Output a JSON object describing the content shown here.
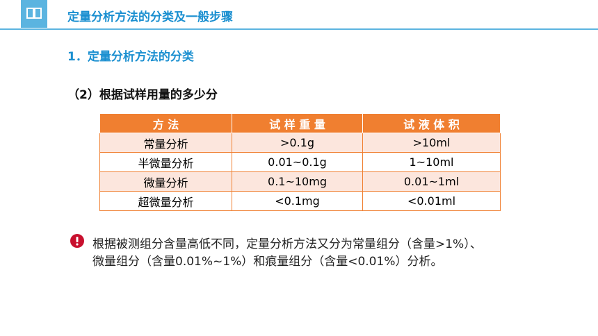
{
  "header": {
    "title": "定量分析方法的分类及一般步骤"
  },
  "section": {
    "title": "1．定量分析方法的分类"
  },
  "subsection": {
    "title": "（2）根据试样用量的多少分"
  },
  "table": {
    "header": [
      "方 法",
      "试 样 重 量",
      "试 液 体 积"
    ],
    "rows": [
      [
        "常量分析",
        ">0.1g",
        ">10ml"
      ],
      [
        "半微量分析",
        "0.01~0.1g",
        "1~10ml"
      ],
      [
        "微量分析",
        "0.1~10mg",
        "0.01~1ml"
      ],
      [
        "超微量分析",
        "<0.1mg",
        "<0.01ml"
      ]
    ]
  },
  "note": {
    "lines": [
      "根据被测组分含量高低不同，定量分析方法又分为常量组分（含量>1%）、",
      "微量组分（含量0.01%~1%）和痕量组分（含量<0.01%）分析。"
    ]
  }
}
